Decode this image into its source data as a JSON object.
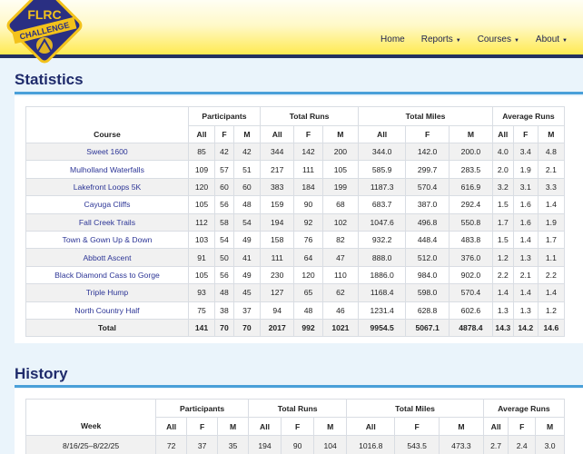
{
  "logo": {
    "line1": "FLRC",
    "line2": "CHALLENGE"
  },
  "nav": [
    {
      "label": "Home",
      "dropdown": false
    },
    {
      "label": "Reports",
      "dropdown": true
    },
    {
      "label": "Courses",
      "dropdown": true
    },
    {
      "label": "About",
      "dropdown": true
    }
  ],
  "statistics": {
    "title": "Statistics",
    "group_headers": {
      "participants": "Participants",
      "total_runs": "Total Runs",
      "total_miles": "Total Miles",
      "average_runs": "Average Runs"
    },
    "col_course": "Course",
    "sub_headers": [
      "All",
      "F",
      "M",
      "All",
      "F",
      "M",
      "All",
      "F",
      "M",
      "All",
      "F",
      "M"
    ],
    "rows": [
      {
        "name": "Sweet 1600",
        "cells": [
          "85",
          "42",
          "42",
          "344",
          "142",
          "200",
          "344.0",
          "142.0",
          "200.0",
          "4.0",
          "3.4",
          "4.8"
        ]
      },
      {
        "name": "Mulholland Waterfalls",
        "cells": [
          "109",
          "57",
          "51",
          "217",
          "111",
          "105",
          "585.9",
          "299.7",
          "283.5",
          "2.0",
          "1.9",
          "2.1"
        ]
      },
      {
        "name": "Lakefront Loops 5K",
        "cells": [
          "120",
          "60",
          "60",
          "383",
          "184",
          "199",
          "1187.3",
          "570.4",
          "616.9",
          "3.2",
          "3.1",
          "3.3"
        ]
      },
      {
        "name": "Cayuga Cliffs",
        "cells": [
          "105",
          "56",
          "48",
          "159",
          "90",
          "68",
          "683.7",
          "387.0",
          "292.4",
          "1.5",
          "1.6",
          "1.4"
        ]
      },
      {
        "name": "Fall Creek Trails",
        "cells": [
          "112",
          "58",
          "54",
          "194",
          "92",
          "102",
          "1047.6",
          "496.8",
          "550.8",
          "1.7",
          "1.6",
          "1.9"
        ]
      },
      {
        "name": "Town & Gown Up & Down",
        "cells": [
          "103",
          "54",
          "49",
          "158",
          "76",
          "82",
          "932.2",
          "448.4",
          "483.8",
          "1.5",
          "1.4",
          "1.7"
        ]
      },
      {
        "name": "Abbott Ascent",
        "cells": [
          "91",
          "50",
          "41",
          "111",
          "64",
          "47",
          "888.0",
          "512.0",
          "376.0",
          "1.2",
          "1.3",
          "1.1"
        ]
      },
      {
        "name": "Black Diamond Cass to Gorge",
        "cells": [
          "105",
          "56",
          "49",
          "230",
          "120",
          "110",
          "1886.0",
          "984.0",
          "902.0",
          "2.2",
          "2.1",
          "2.2"
        ]
      },
      {
        "name": "Triple Hump",
        "cells": [
          "93",
          "48",
          "45",
          "127",
          "65",
          "62",
          "1168.4",
          "598.0",
          "570.4",
          "1.4",
          "1.4",
          "1.4"
        ]
      },
      {
        "name": "North Country Half",
        "cells": [
          "75",
          "38",
          "37",
          "94",
          "48",
          "46",
          "1231.4",
          "628.8",
          "602.6",
          "1.3",
          "1.3",
          "1.2"
        ]
      }
    ],
    "total": {
      "label": "Total",
      "cells": [
        "141",
        "70",
        "70",
        "2017",
        "992",
        "1021",
        "9954.5",
        "5067.1",
        "4878.4",
        "14.3",
        "14.2",
        "14.6"
      ]
    }
  },
  "history": {
    "title": "History",
    "group_headers": {
      "participants": "Participants",
      "total_runs": "Total Runs",
      "total_miles": "Total Miles",
      "average_runs": "Average Runs"
    },
    "col_week": "Week",
    "sub_headers": [
      "All",
      "F",
      "M",
      "All",
      "F",
      "M",
      "All",
      "F",
      "M",
      "All",
      "F",
      "M"
    ],
    "rows": [
      {
        "name": "8/16/25–8/22/25",
        "cells": [
          "72",
          "37",
          "35",
          "194",
          "90",
          "104",
          "1016.8",
          "543.5",
          "473.3",
          "2.7",
          "2.4",
          "3.0"
        ]
      }
    ]
  },
  "colors": {
    "accent_navy": "#1f2b6b",
    "rule_blue": "#4aa0d9",
    "header_yellow": "#ffe94a",
    "link_blue": "#2c3596"
  }
}
